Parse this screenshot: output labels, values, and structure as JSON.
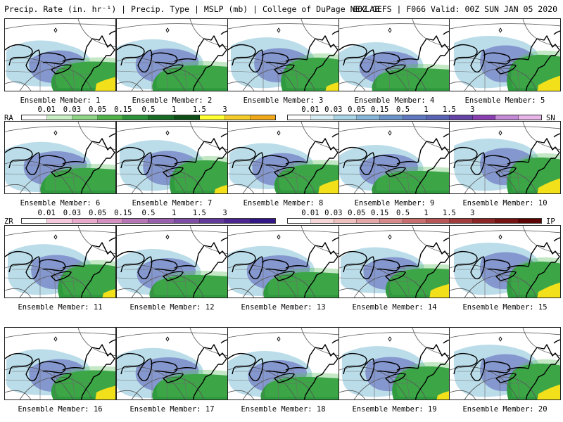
{
  "header": {
    "left": "Precip. Rate (in. hr⁻¹) | Precip. Type | MSLP (mb) | College of DuPage NEXLAB",
    "right": "06Z GEFS | F066 Valid: 00Z SUN JAN 05 2020"
  },
  "members": [
    {
      "label": "Ensemble Member: 1",
      "variant": 0
    },
    {
      "label": "Ensemble Member: 2",
      "variant": 1
    },
    {
      "label": "Ensemble Member: 3",
      "variant": 2
    },
    {
      "label": "Ensemble Member: 4",
      "variant": 3
    },
    {
      "label": "Ensemble Member: 5",
      "variant": 4
    },
    {
      "label": "Ensemble Member: 6",
      "variant": 1
    },
    {
      "label": "Ensemble Member: 7",
      "variant": 2
    },
    {
      "label": "Ensemble Member: 8",
      "variant": 0
    },
    {
      "label": "Ensemble Member: 9",
      "variant": 3
    },
    {
      "label": "Ensemble Member: 10",
      "variant": 4
    },
    {
      "label": "Ensemble Member: 11",
      "variant": 2
    },
    {
      "label": "Ensemble Member: 12",
      "variant": 3
    },
    {
      "label": "Ensemble Member: 13",
      "variant": 1
    },
    {
      "label": "Ensemble Member: 14",
      "variant": 0
    },
    {
      "label": "Ensemble Member: 15",
      "variant": 4
    },
    {
      "label": "Ensemble Member: 16",
      "variant": 0
    },
    {
      "label": "Ensemble Member: 17",
      "variant": 1
    },
    {
      "label": "Ensemble Member: 18",
      "variant": 3
    },
    {
      "label": "Ensemble Member: 19",
      "variant": 2
    },
    {
      "label": "Ensemble Member: 20",
      "variant": 4
    }
  ],
  "legends": [
    {
      "id": "rain",
      "tag": "RA",
      "tag_side": "left",
      "values": [
        "0.01",
        "0.03",
        "0.05",
        "0.15",
        "0.5",
        "1",
        "1.5",
        "3"
      ],
      "colors": [
        "#ffffff",
        "#c9f0c4",
        "#8ed686",
        "#4fb349",
        "#2c9138",
        "#176b25",
        "#0e4f18",
        "#ffff33",
        "#f5cd2a",
        "#f0a818"
      ]
    },
    {
      "id": "snow",
      "tag": "SN",
      "tag_side": "right",
      "values": [
        "0.01",
        "0.03",
        "0.05",
        "0.15",
        "0.5",
        "1",
        "1.5",
        "3"
      ],
      "colors": [
        "#ffffff",
        "#d6eef4",
        "#a9d5e6",
        "#86b6d9",
        "#6d94c9",
        "#5f78bf",
        "#5963b3",
        "#6444a4",
        "#8a3fb0",
        "#c48ad6",
        "#e8b5e8"
      ]
    },
    {
      "id": "freezing-rain",
      "tag": "ZR",
      "tag_side": "left",
      "values": [
        "0.01",
        "0.03",
        "0.05",
        "0.15",
        "0.5",
        "1",
        "1.5",
        "3"
      ],
      "colors": [
        "#ffffff",
        "#f7c9dc",
        "#e9aacb",
        "#d38fc0",
        "#b675b4",
        "#9860ad",
        "#7e4ea5",
        "#623a9c",
        "#4b2590",
        "#321687"
      ]
    },
    {
      "id": "sleet",
      "tag": "IP",
      "tag_side": "right",
      "values": [
        "0.01",
        "0.03",
        "0.05",
        "0.15",
        "0.5",
        "1",
        "1.5",
        "3"
      ],
      "colors": [
        "#ffffff",
        "#f6d6d6",
        "#eec0c0",
        "#e4a7a7",
        "#d88a8a",
        "#c96e6e",
        "#b75656",
        "#a23c3c",
        "#8c2626",
        "#751212",
        "#5c0303"
      ]
    }
  ]
}
